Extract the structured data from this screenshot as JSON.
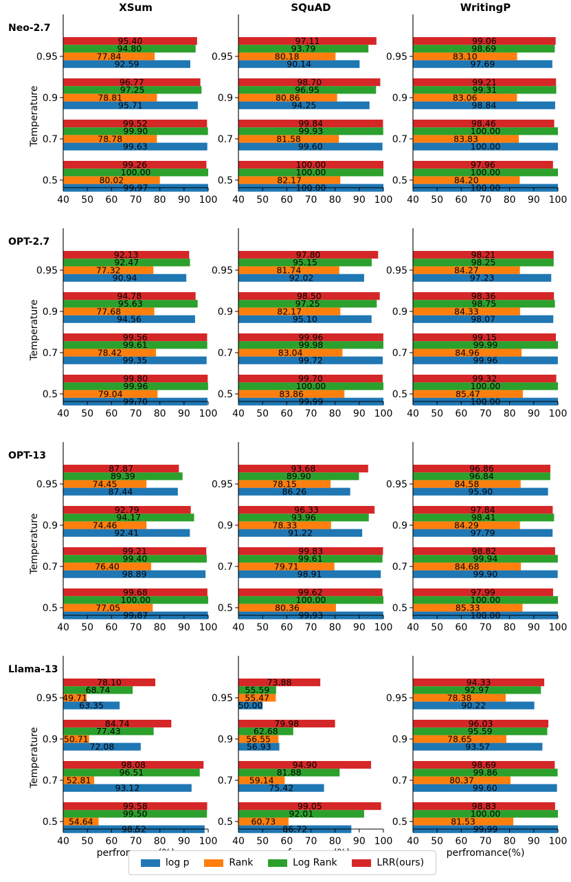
{
  "figure": {
    "columns": [
      "XSum",
      "SQuAD",
      "WritingP"
    ],
    "models": [
      "Neo-2.7",
      "OPT-2.7",
      "OPT-13",
      "Llama-13"
    ],
    "ylabel": "Temperature",
    "xlabel": "perfromance(%)"
  },
  "colors": {
    "logp": "#1f77b4",
    "rank": "#ff7f0e",
    "logrank": "#2ca02c",
    "lrr": "#d62728"
  },
  "legend": {
    "logp": "log p",
    "rank": "Rank",
    "logrank": "Log Rank",
    "lrr": "LRR(ours)"
  },
  "chart_data": {
    "type": "bar",
    "orientation": "horizontal",
    "categories": [
      "0.95",
      "0.9",
      "0.7",
      "0.5"
    ],
    "series_names": [
      "log p",
      "Rank",
      "Log Rank",
      "LRR(ours)"
    ],
    "xlim": [
      40,
      100
    ],
    "xticks": [
      "40",
      "50",
      "60",
      "70",
      "80",
      "90",
      "100"
    ],
    "panels": [
      {
        "model": "Neo-2.7",
        "dataset": "XSum",
        "series": {
          "logp": [
            92.59,
            95.71,
            99.63,
            99.97
          ],
          "rank": [
            77.84,
            78.81,
            78.78,
            80.02
          ],
          "logrank": [
            94.8,
            97.25,
            99.9,
            100.0
          ],
          "lrr": [
            95.4,
            96.77,
            99.52,
            99.26
          ]
        }
      },
      {
        "model": "Neo-2.7",
        "dataset": "SQuAD",
        "series": {
          "logp": [
            90.14,
            94.25,
            99.6,
            100.0
          ],
          "rank": [
            80.18,
            80.86,
            81.58,
            82.17
          ],
          "logrank": [
            93.79,
            96.95,
            99.93,
            100.0
          ],
          "lrr": [
            97.11,
            98.7,
            99.84,
            100.0
          ]
        }
      },
      {
        "model": "Neo-2.7",
        "dataset": "WritingP",
        "series": {
          "logp": [
            97.69,
            98.84,
            100.0,
            100.0
          ],
          "rank": [
            83.1,
            83.06,
            83.83,
            84.2
          ],
          "logrank": [
            98.69,
            99.31,
            100.0,
            100.0
          ],
          "lrr": [
            99.06,
            99.21,
            98.46,
            97.96
          ]
        }
      },
      {
        "model": "OPT-2.7",
        "dataset": "XSum",
        "series": {
          "logp": [
            90.94,
            94.56,
            99.35,
            99.7
          ],
          "rank": [
            77.32,
            77.68,
            78.42,
            79.04
          ],
          "logrank": [
            92.47,
            95.63,
            99.61,
            99.96
          ],
          "lrr": [
            92.13,
            94.78,
            99.56,
            99.8
          ]
        }
      },
      {
        "model": "OPT-2.7",
        "dataset": "SQuAD",
        "series": {
          "logp": [
            92.02,
            95.1,
            99.72,
            99.99
          ],
          "rank": [
            81.74,
            82.17,
            83.04,
            83.86
          ],
          "logrank": [
            95.15,
            97.25,
            99.98,
            100.0
          ],
          "lrr": [
            97.8,
            98.5,
            99.96,
            99.7
          ]
        }
      },
      {
        "model": "OPT-2.7",
        "dataset": "WritingP",
        "series": {
          "logp": [
            97.23,
            98.07,
            99.96,
            100.0
          ],
          "rank": [
            84.27,
            84.33,
            84.96,
            85.47
          ],
          "logrank": [
            98.25,
            98.75,
            99.99,
            100.0
          ],
          "lrr": [
            98.21,
            98.36,
            99.15,
            99.32
          ]
        }
      },
      {
        "model": "OPT-13",
        "dataset": "XSum",
        "series": {
          "logp": [
            87.44,
            92.41,
            98.89,
            99.87
          ],
          "rank": [
            74.45,
            74.46,
            76.4,
            77.05
          ],
          "logrank": [
            89.39,
            94.17,
            99.4,
            100.0
          ],
          "lrr": [
            87.87,
            92.79,
            99.21,
            99.68
          ]
        }
      },
      {
        "model": "OPT-13",
        "dataset": "SQuAD",
        "series": {
          "logp": [
            86.26,
            91.22,
            98.91,
            99.93
          ],
          "rank": [
            78.15,
            78.33,
            79.71,
            80.36
          ],
          "logrank": [
            89.9,
            93.96,
            99.61,
            100.0
          ],
          "lrr": [
            93.68,
            96.33,
            99.83,
            99.62
          ]
        }
      },
      {
        "model": "OPT-13",
        "dataset": "WritingP",
        "series": {
          "logp": [
            95.9,
            97.79,
            99.9,
            100.0
          ],
          "rank": [
            84.58,
            84.29,
            84.68,
            85.33
          ],
          "logrank": [
            96.84,
            98.41,
            99.94,
            100.0
          ],
          "lrr": [
            96.86,
            97.84,
            98.82,
            97.99
          ]
        }
      },
      {
        "model": "Llama-13",
        "dataset": "XSum",
        "series": {
          "logp": [
            63.35,
            72.08,
            93.12,
            98.52
          ],
          "rank": [
            49.71,
            50.71,
            52.81,
            54.64
          ],
          "logrank": [
            68.74,
            77.43,
            96.51,
            99.5
          ],
          "lrr": [
            78.1,
            84.74,
            98.08,
            99.58
          ]
        }
      },
      {
        "model": "Llama-13",
        "dataset": "SQuAD",
        "series": {
          "logp": [
            50.0,
            56.93,
            75.42,
            86.72
          ],
          "rank": [
            55.47,
            56.55,
            59.14,
            60.73
          ],
          "logrank": [
            55.59,
            62.68,
            81.88,
            92.01
          ],
          "lrr": [
            73.88,
            79.98,
            94.9,
            99.05
          ]
        }
      },
      {
        "model": "Llama-13",
        "dataset": "WritingP",
        "series": {
          "logp": [
            90.22,
            93.57,
            99.6,
            99.99
          ],
          "rank": [
            78.38,
            78.65,
            80.37,
            81.53
          ],
          "logrank": [
            92.97,
            95.59,
            99.86,
            100.0
          ],
          "lrr": [
            94.33,
            96.03,
            98.69,
            98.83
          ]
        }
      }
    ]
  }
}
